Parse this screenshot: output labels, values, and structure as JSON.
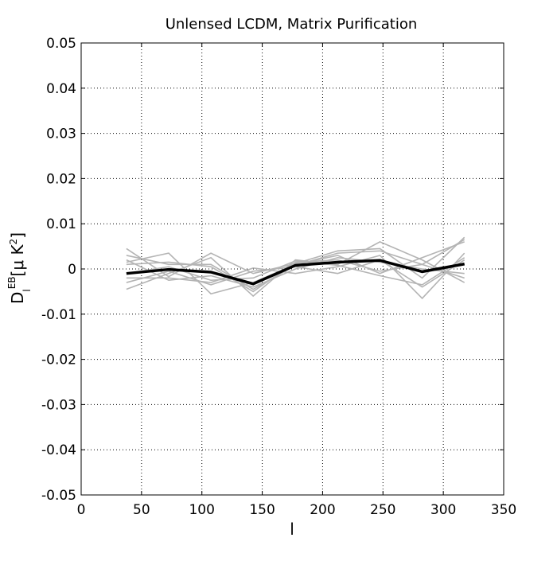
{
  "chart_data": {
    "type": "line",
    "title": "Unlensed LCDM, Matrix Purification",
    "xlabel": "l",
    "ylabel": {
      "main": "D",
      "subscript": "l",
      "superscript": "EB",
      "unit_prefix": "[μ K",
      "unit_exponent": "2",
      "unit_suffix": "]"
    },
    "xlim": [
      0,
      350
    ],
    "ylim": [
      -0.05,
      0.05
    ],
    "xticks": [
      0,
      50,
      100,
      150,
      200,
      250,
      300,
      350
    ],
    "xtick_labels": [
      "0",
      "50",
      "100",
      "150",
      "200",
      "250",
      "300",
      "350"
    ],
    "yticks": [
      -0.05,
      -0.04,
      -0.03,
      -0.02,
      -0.01,
      0,
      0.01,
      0.02,
      0.03,
      0.04,
      0.05
    ],
    "ytick_labels": [
      "-0.05",
      "-0.04",
      "-0.03",
      "-0.02",
      "-0.01",
      "0",
      "0.01",
      "0.02",
      "0.03",
      "0.04",
      "0.05"
    ],
    "grid": true,
    "x": [
      37.5,
      72.5,
      107.5,
      142.5,
      177.5,
      212.5,
      247.5,
      282.5,
      317.5
    ],
    "series": [
      {
        "role": "mean",
        "color": "#000000",
        "values": [
          -0.001,
          -0.0001,
          -0.0007,
          -0.0033,
          0.0008,
          0.0015,
          0.0019,
          -0.0006,
          0.0011
        ]
      },
      {
        "role": "realization",
        "color": "#b4b4b4",
        "values": [
          0.0045,
          -0.0017,
          0.0035,
          -0.001,
          0.0012,
          0.004,
          0.0045,
          -0.002,
          0.007
        ]
      },
      {
        "role": "realization",
        "color": "#b4b4b4",
        "values": [
          -0.0045,
          -0.001,
          0.0025,
          -0.006,
          0.002,
          0.001,
          0.006,
          0.002,
          -0.003
        ]
      },
      {
        "role": "realization",
        "color": "#b4b4b4",
        "values": [
          0.0015,
          0.0035,
          -0.0055,
          -0.003,
          0.001,
          0.003,
          -0.001,
          0.0025,
          0.006
        ]
      },
      {
        "role": "realization",
        "color": "#b4b4b4",
        "values": [
          -0.002,
          -0.002,
          -0.003,
          0.0002,
          -0.001,
          0.0005,
          0.003,
          -0.0065,
          0.0035
        ]
      },
      {
        "role": "realization",
        "color": "#b4b4b4",
        "values": [
          0.001,
          0.0015,
          0.0005,
          -0.005,
          0.0015,
          0.002,
          -0.0005,
          0.001,
          -0.002
        ]
      },
      {
        "role": "realization",
        "color": "#b4b4b4",
        "values": [
          -0.003,
          -0.0005,
          -0.0035,
          -0.0005,
          0.0005,
          -0.001,
          0.002,
          -0.004,
          0.002
        ]
      },
      {
        "role": "realization",
        "color": "#b4b4b4",
        "values": [
          0.002,
          -0.0025,
          -0.0015,
          -0.004,
          0.0,
          0.0025,
          0.0015,
          0.0,
          -0.001
        ]
      },
      {
        "role": "realization",
        "color": "#b4b4b4",
        "values": [
          -0.001,
          0.0005,
          -0.0025,
          -0.002,
          0.0018,
          0.0008,
          -0.0015,
          -0.0035,
          0.0025
        ]
      },
      {
        "role": "realization",
        "color": "#b4b4b4",
        "values": [
          0.003,
          0.001,
          0.001,
          -0.0045,
          0.0008,
          0.0035,
          0.004,
          0.001,
          0.0065
        ]
      }
    ]
  }
}
